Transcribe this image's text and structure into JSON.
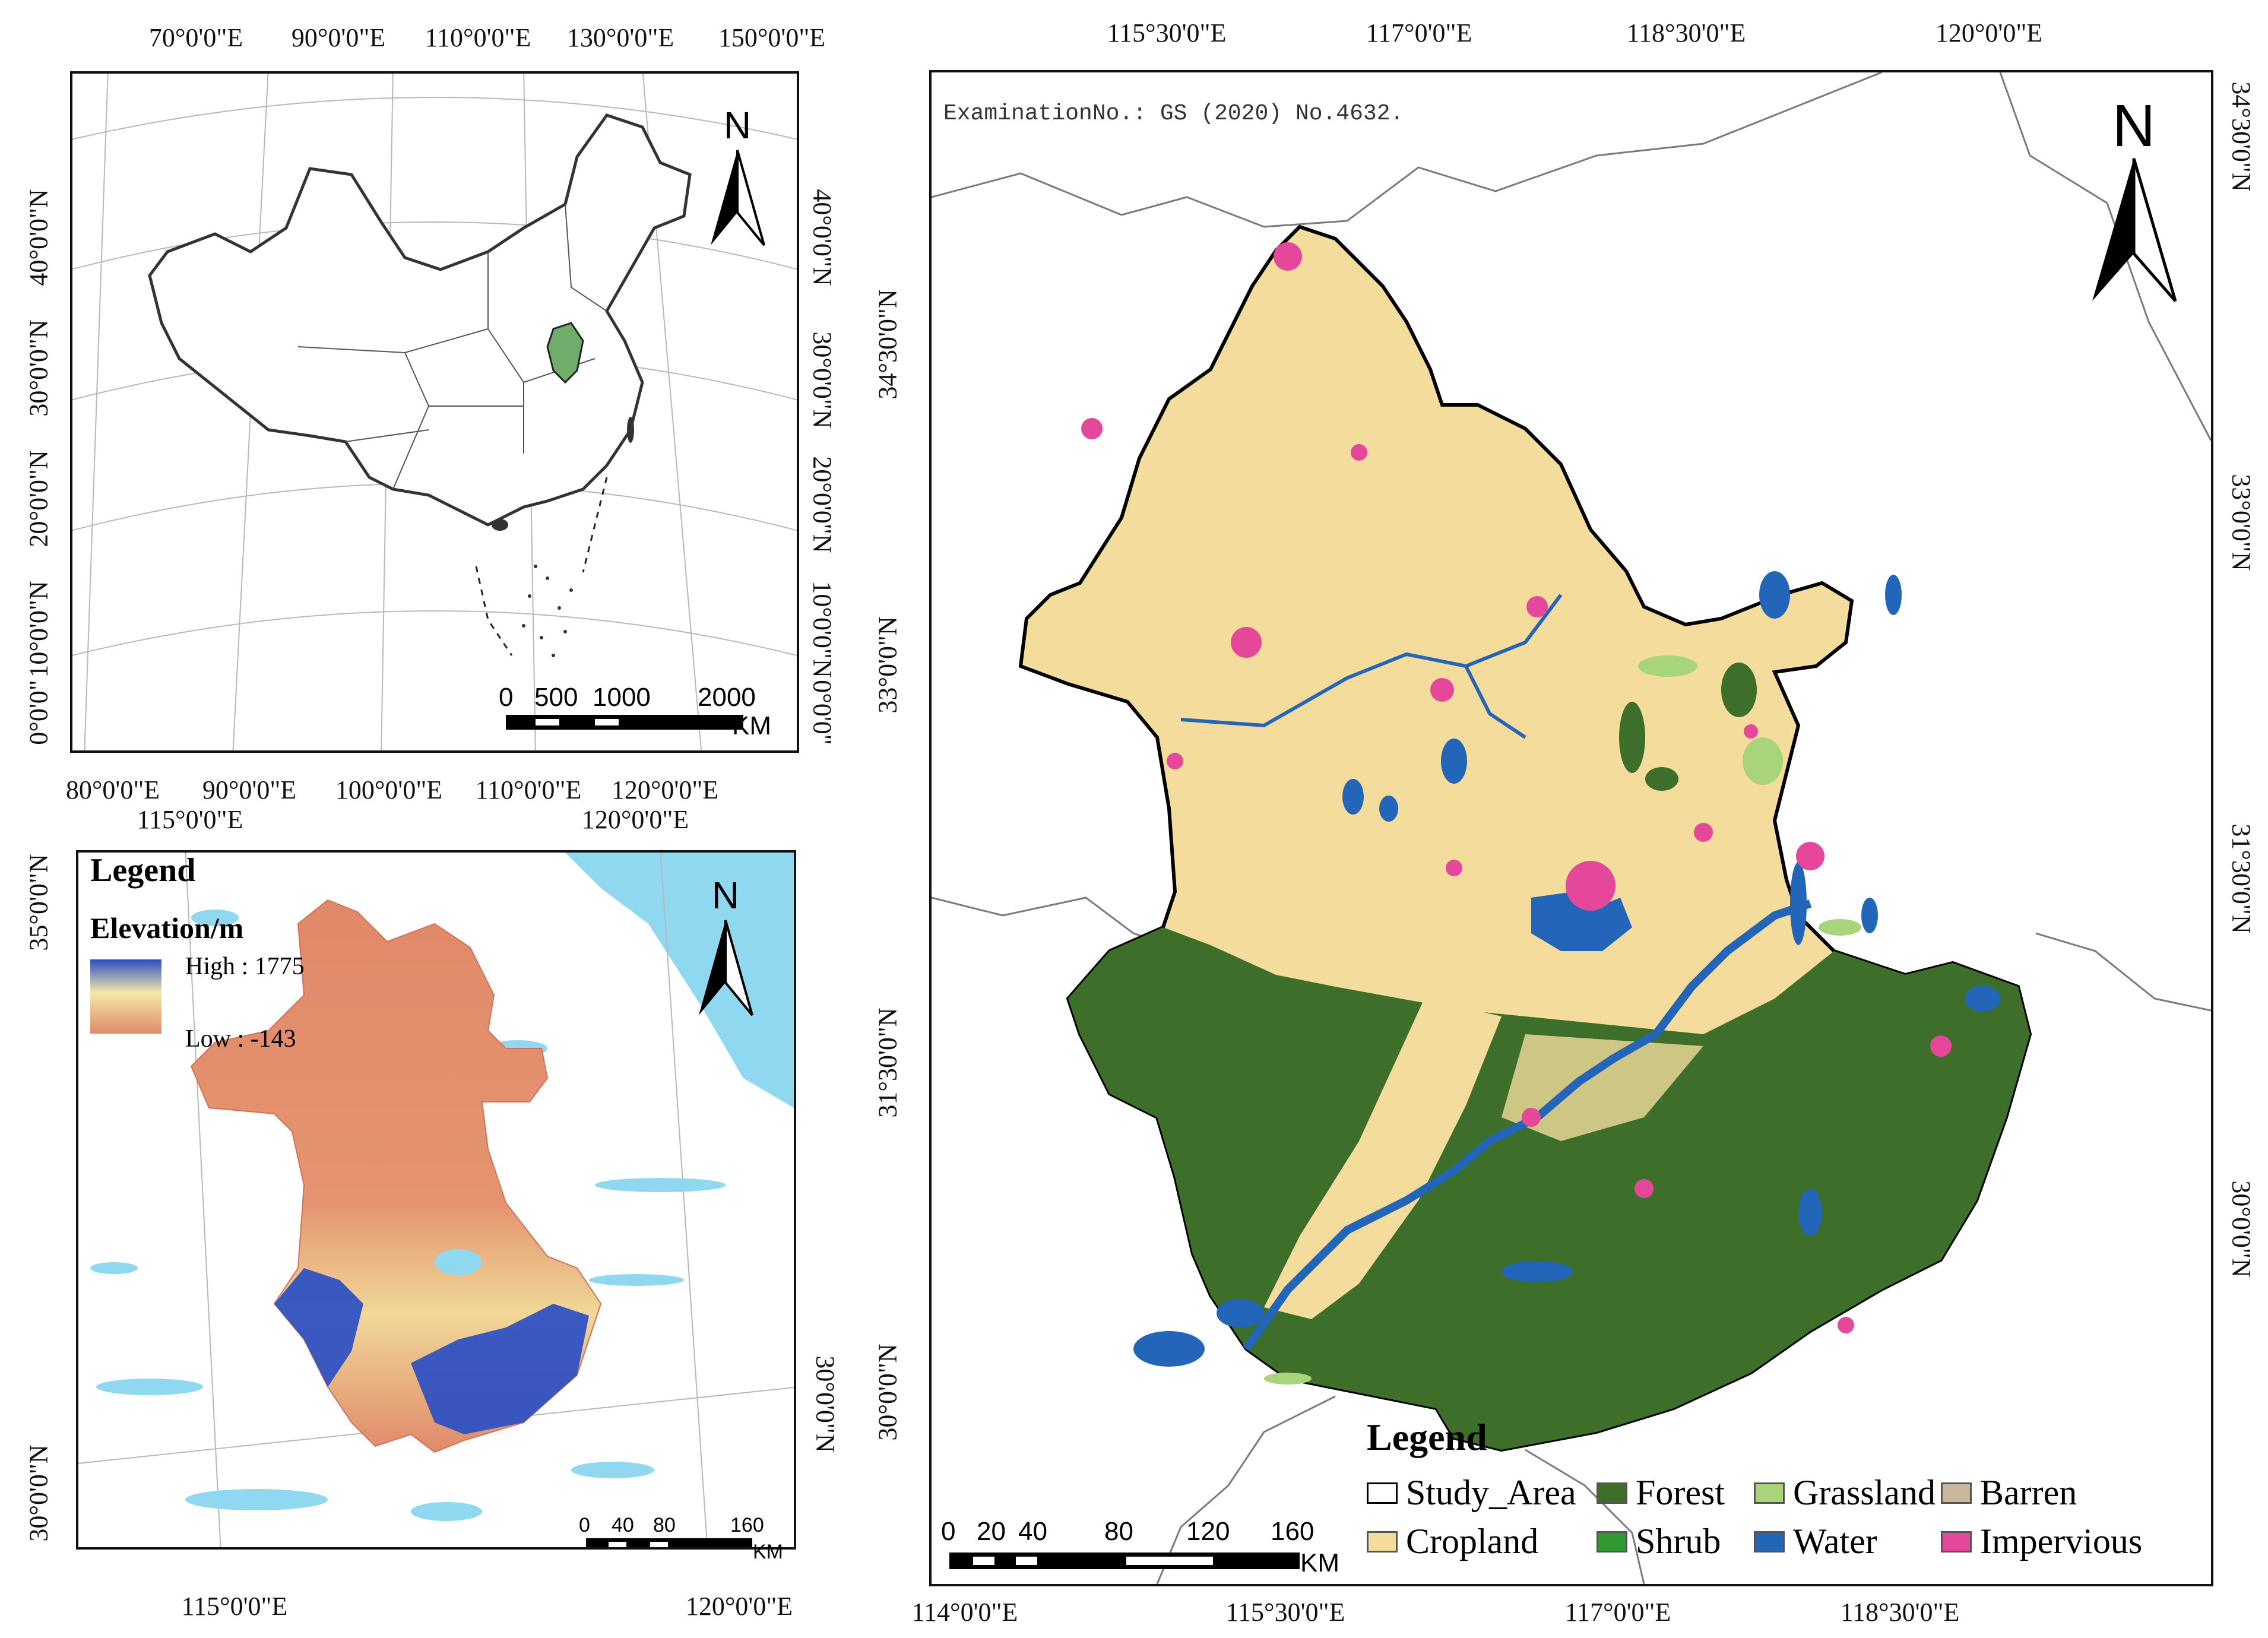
{
  "inset_china": {
    "top_ticks": [
      "70°0'0\"E",
      "90°0'0\"E",
      "110°0'0\"E",
      "130°0'0\"E",
      "150°0'0\"E"
    ],
    "bottom_ticks": [
      "80°0'0\"E",
      "90°0'0\"E",
      "100°0'0\"E",
      "110°0'0\"E",
      "120°0'0\"E"
    ],
    "left_ticks": [
      "40°0'0\"N",
      "30°0'0\"N",
      "20°0'0\"N",
      "10°0'0\"N",
      "0°0'0\""
    ],
    "right_ticks": [
      "40°0'0\"N",
      "30°0'0\"N",
      "20°0'0\"N",
      "10°0'0\"N",
      "0°0'0\""
    ],
    "north": "N",
    "scale_labels": [
      "0",
      "500",
      "1000",
      "2000"
    ],
    "scale_unit": "KM"
  },
  "elevation_map": {
    "top_ticks": [
      "115°0'0\"E",
      "120°0'0\"E"
    ],
    "bottom_ticks": [
      "115°0'0\"E",
      "120°0'0\"E"
    ],
    "left_ticks": [
      "35°0'0\"N",
      "30°0'0\"N"
    ],
    "right_ticks": [
      "30°0'0\"N"
    ],
    "legend_title": "Legend",
    "legend_subtitle": "Elevation/m",
    "high_label": "High : 1775",
    "low_label": "Low : -143",
    "north": "N",
    "scale_labels": [
      "0",
      "40",
      "80",
      "160"
    ],
    "scale_unit": "KM",
    "colors": {
      "high": "#2a4fc4",
      "mid": "#f5e9a6",
      "low": "#e0896a",
      "sea": "#8fd8f0"
    }
  },
  "landcover_map": {
    "examination_no": "ExaminationNo.: GS (2020) No.4632.",
    "top_ticks": [
      "115°30'0\"E",
      "117°0'0\"E",
      "118°30'0\"E",
      "120°0'0\"E"
    ],
    "bottom_ticks": [
      "114°0'0\"E",
      "115°30'0\"E",
      "117°0'0\"E",
      "118°30'0\"E"
    ],
    "left_ticks": [
      "34°30'0\"N",
      "33°0'0\"N",
      "31°30'0\"N",
      "30°0'0\"N"
    ],
    "right_ticks": [
      "34°30'0\"N",
      "33°0'0\"N",
      "31°30'0\"N",
      "30°0'0\"N"
    ],
    "north": "N",
    "legend_title": "Legend",
    "legend_items": [
      {
        "label": "Study_Area",
        "color": "#ffffff"
      },
      {
        "label": "Forest",
        "color": "#3d6e2a"
      },
      {
        "label": "Grassland",
        "color": "#a8d47a"
      },
      {
        "label": "Barren",
        "color": "#cbb79a"
      },
      {
        "label": "Cropland",
        "color": "#f3dc9c"
      },
      {
        "label": "Shrub",
        "color": "#2f9a32"
      },
      {
        "label": "Water",
        "color": "#2365b8"
      },
      {
        "label": "Impervious",
        "color": "#e5479a"
      }
    ],
    "scale_labels": [
      "0",
      "20",
      "40",
      "80",
      "120",
      "160"
    ],
    "scale_unit": "KM"
  }
}
